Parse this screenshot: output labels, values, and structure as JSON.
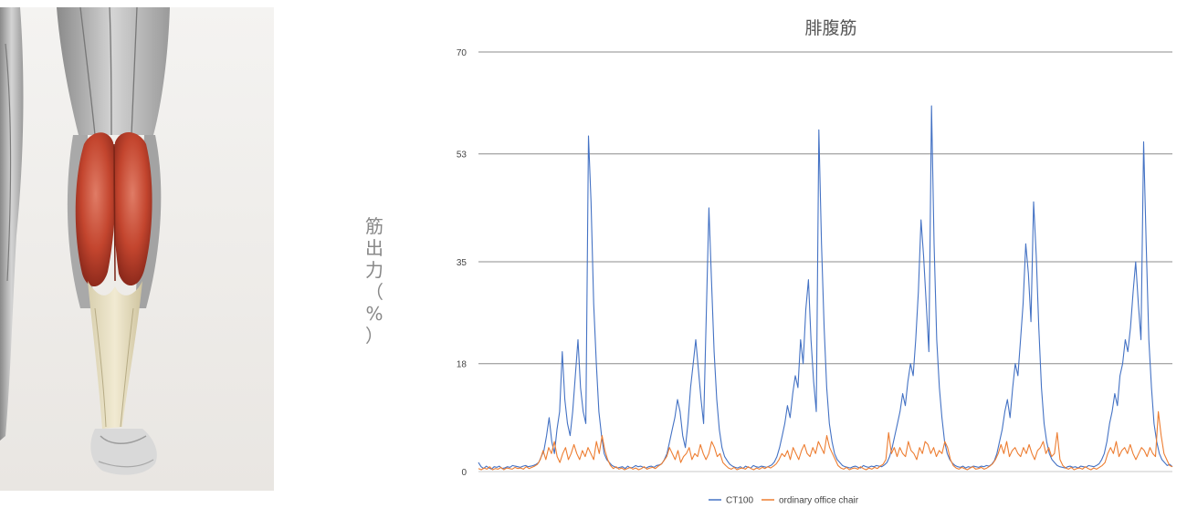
{
  "chart_data": {
    "type": "line",
    "title": "腓腹筋",
    "ylabel_chars": [
      "筋",
      "出",
      "力",
      "（",
      "%",
      "）"
    ],
    "yticks": [
      "0",
      "18",
      "35",
      "53",
      "70"
    ],
    "ylim": [
      0,
      70
    ],
    "xlim": [
      0,
      270
    ],
    "grid": true,
    "legend_position": "bottom-center",
    "series": [
      {
        "name": "CT100",
        "color": "#4472c4",
        "values": [
          1.5,
          0.8,
          0.5,
          0.9,
          0.6,
          0.4,
          0.8,
          0.7,
          0.9,
          0.5,
          0.6,
          0.8,
          0.7,
          1.0,
          0.9,
          0.8,
          0.7,
          0.9,
          1.0,
          0.8,
          0.9,
          1.0,
          1.2,
          1.5,
          2.5,
          3.5,
          6,
          9,
          5,
          3,
          7,
          10,
          20,
          12,
          8,
          6,
          10,
          16,
          22,
          14,
          10,
          8,
          56,
          45,
          28,
          18,
          10,
          6,
          3,
          2,
          1.5,
          1,
          0.8,
          0.6,
          0.7,
          0.8,
          0.5,
          0.9,
          0.6,
          0.7,
          1,
          0.8,
          0.9,
          0.7,
          0.6,
          0.8,
          0.9,
          0.7,
          1,
          1.1,
          1.3,
          2,
          3,
          5,
          7,
          9,
          12,
          10,
          6,
          4,
          8,
          14,
          18,
          22,
          17,
          12,
          8,
          26,
          44,
          32,
          20,
          12,
          7,
          4,
          2.5,
          1.8,
          1.2,
          0.9,
          0.7,
          0.6,
          0.8,
          0.5,
          0.9,
          0.7,
          0.6,
          1.0,
          0.8,
          0.7,
          0.9,
          0.8,
          0.7,
          0.9,
          1.1,
          1.6,
          2.5,
          4,
          6,
          8,
          11,
          9,
          13,
          16,
          14,
          22,
          18,
          27,
          32,
          22,
          15,
          10,
          57,
          38,
          24,
          14,
          8,
          5,
          3,
          2,
          1.5,
          1,
          0.8,
          0.7,
          0.6,
          0.8,
          0.9,
          0.7,
          0.6,
          1,
          0.8,
          0.7,
          0.9,
          0.8,
          1.0,
          0.9,
          0.8,
          1.1,
          1.5,
          2.5,
          4,
          6,
          8,
          10,
          13,
          11,
          15,
          18,
          16,
          22,
          30,
          42,
          36,
          28,
          20,
          61,
          38,
          22,
          14,
          9,
          5,
          3,
          2,
          1.4,
          1.0,
          0.8,
          0.7,
          0.9,
          0.6,
          0.8,
          0.7,
          0.9,
          0.8,
          0.7,
          0.9,
          0.8,
          1.0,
          0.9,
          1.2,
          1.8,
          3,
          5,
          7,
          10,
          12,
          9,
          14,
          18,
          16,
          22,
          28,
          38,
          33,
          25,
          45,
          36,
          24,
          14,
          8,
          5,
          3,
          2,
          1.5,
          1,
          0.8,
          0.7,
          0.6,
          0.8,
          0.9,
          0.7,
          0.8,
          0.6,
          0.9,
          0.8,
          0.7,
          1.0,
          0.9,
          0.8,
          1.0,
          1.3,
          2,
          3,
          5,
          8,
          10,
          13,
          11,
          16,
          18,
          22,
          20,
          24,
          30,
          35,
          28,
          22,
          55,
          38,
          22,
          14,
          8,
          5,
          3,
          2,
          1.5,
          1,
          1.2,
          0.8
        ]
      },
      {
        "name": "ordinary office chair",
        "color": "#ed7d31",
        "values": [
          0.5,
          0.3,
          0.6,
          0.4,
          0.8,
          0.3,
          0.5,
          0.4,
          0.7,
          0.3,
          0.6,
          0.5,
          0.4,
          0.7,
          0.5,
          0.6,
          0.4,
          0.8,
          0.5,
          0.7,
          0.9,
          1.2,
          2,
          3.5,
          2,
          4,
          3,
          5,
          2.5,
          1.5,
          3,
          4,
          2,
          3,
          4.5,
          3,
          2,
          3.5,
          2.5,
          4,
          3,
          2,
          5,
          3,
          6,
          3.5,
          2,
          1,
          0.5,
          0.8,
          0.4,
          0.6,
          0.3,
          0.5,
          0.7,
          0.4,
          0.6,
          0.3,
          0.5,
          0.8,
          0.4,
          0.6,
          0.7,
          0.5,
          0.9,
          1.2,
          1.8,
          2.5,
          4,
          3,
          2,
          3.5,
          1.5,
          2.5,
          3,
          4,
          2,
          3,
          2.5,
          4.5,
          3,
          2,
          3,
          5,
          4,
          2.5,
          3,
          1.5,
          1,
          0.6,
          0.4,
          0.7,
          0.3,
          0.5,
          0.6,
          0.4,
          0.8,
          0.5,
          0.3,
          0.6,
          0.4,
          0.7,
          0.5,
          0.8,
          0.6,
          0.9,
          1.3,
          2,
          3,
          2.5,
          3.5,
          2,
          4,
          3,
          2,
          3.5,
          4.5,
          3,
          2.5,
          4,
          3,
          5,
          4,
          3,
          6,
          4,
          3,
          2,
          1,
          0.6,
          0.4,
          0.7,
          0.3,
          0.5,
          0.6,
          0.4,
          0.8,
          0.5,
          0.3,
          0.6,
          0.4,
          0.7,
          0.5,
          0.9,
          1.2,
          2,
          6.5,
          3,
          4,
          2.5,
          4,
          3,
          2.5,
          5,
          3.5,
          3,
          2,
          4,
          3,
          5,
          4.5,
          3,
          4,
          2.5,
          3.5,
          3,
          5,
          4,
          2,
          1,
          0.6,
          0.4,
          0.7,
          0.5,
          0.3,
          0.6,
          0.8,
          0.4,
          0.5,
          0.7,
          0.4,
          0.6,
          0.9,
          1.3,
          2,
          3,
          4.5,
          3,
          5,
          2.5,
          3.5,
          4,
          3,
          2.5,
          4,
          3,
          4.5,
          3,
          2,
          3.5,
          4,
          5,
          3,
          4,
          2.5,
          3,
          6.5,
          2,
          1,
          0.6,
          0.4,
          0.7,
          0.3,
          0.5,
          0.6,
          0.4,
          0.8,
          0.5,
          0.3,
          0.6,
          0.4,
          0.7,
          1,
          1.5,
          3,
          4,
          3,
          5,
          2.5,
          3.5,
          4,
          3,
          4.5,
          3,
          2,
          3,
          4,
          3.5,
          2.5,
          4,
          3,
          2.5,
          10,
          6,
          3,
          2,
          1,
          0.8
        ]
      }
    ]
  }
}
